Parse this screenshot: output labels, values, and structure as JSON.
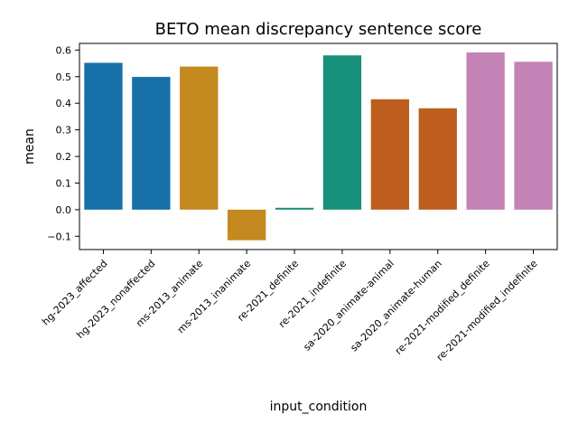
{
  "chart_data": {
    "type": "bar",
    "title": "BETO mean discrepancy sentence score",
    "xlabel": "input_condition",
    "ylabel": "mean",
    "ylim": [
      -0.15,
      0.625
    ],
    "yticks": [
      -0.1,
      0.0,
      0.1,
      0.2,
      0.3,
      0.4,
      0.5,
      0.6
    ],
    "ytick_labels": [
      "−0.1",
      "0.0",
      "0.1",
      "0.2",
      "0.3",
      "0.4",
      "0.5",
      "0.6"
    ],
    "categories": [
      "hg-2023_affected",
      "hg-2023_nonaffected",
      "ms-2013_animate",
      "ms-2013_inanimate",
      "re-2021_definite",
      "re-2021_indefinite",
      "sa-2020_animate-animal",
      "sa-2020_animate-human",
      "re-2021-modified_definite",
      "re-2021-modified_indefinite"
    ],
    "values": [
      0.552,
      0.499,
      0.538,
      -0.115,
      0.007,
      0.58,
      0.415,
      0.381,
      0.591,
      0.556
    ],
    "colors": [
      "#1770a8",
      "#1770a8",
      "#c58a1f",
      "#c58a1f",
      "#17917a",
      "#17917a",
      "#bd5e1f",
      "#bd5e1f",
      "#c383b6",
      "#c383b6"
    ],
    "grid": false,
    "legend": "none"
  }
}
